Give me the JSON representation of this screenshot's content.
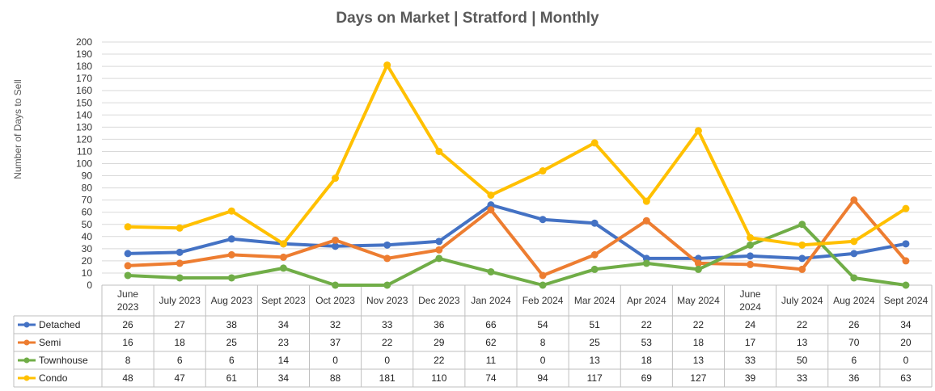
{
  "chart_data": {
    "type": "line",
    "title": "Days on Market | Stratford | Monthly",
    "xlabel": "",
    "ylabel": "Number of Days to Sell",
    "ylim": [
      0,
      200
    ],
    "ytick_step": 10,
    "grid": true,
    "legend_placement": "data-table-left",
    "categories": [
      [
        "June",
        "2023"
      ],
      [
        "July 2023"
      ],
      [
        "Aug 2023"
      ],
      [
        "Sept 2023"
      ],
      [
        "Oct 2023"
      ],
      [
        "Nov 2023"
      ],
      [
        "Dec 2023"
      ],
      [
        "Jan 2024"
      ],
      [
        "Feb 2024"
      ],
      [
        "Mar 2024"
      ],
      [
        "Apr 2024"
      ],
      [
        "May 2024"
      ],
      [
        "June",
        "2024"
      ],
      [
        "July 2024"
      ],
      [
        "Aug 2024"
      ],
      [
        "Sept 2024"
      ]
    ],
    "series": [
      {
        "name": "Detached",
        "color": "#4472C4",
        "values": [
          26,
          27,
          38,
          34,
          32,
          33,
          36,
          66,
          54,
          51,
          22,
          22,
          24,
          22,
          26,
          34
        ]
      },
      {
        "name": "Semi",
        "color": "#ED7D31",
        "values": [
          16,
          18,
          25,
          23,
          37,
          22,
          29,
          62,
          8,
          25,
          53,
          18,
          17,
          13,
          70,
          20
        ]
      },
      {
        "name": "Townhouse",
        "color": "#70AD47",
        "values": [
          8,
          6,
          6,
          14,
          0,
          0,
          22,
          11,
          0,
          13,
          18,
          13,
          33,
          50,
          6,
          0
        ]
      },
      {
        "name": "Condo",
        "color": "#FFC000",
        "values": [
          48,
          47,
          61,
          34,
          88,
          181,
          110,
          74,
          94,
          117,
          69,
          127,
          39,
          33,
          36,
          63
        ]
      }
    ]
  }
}
